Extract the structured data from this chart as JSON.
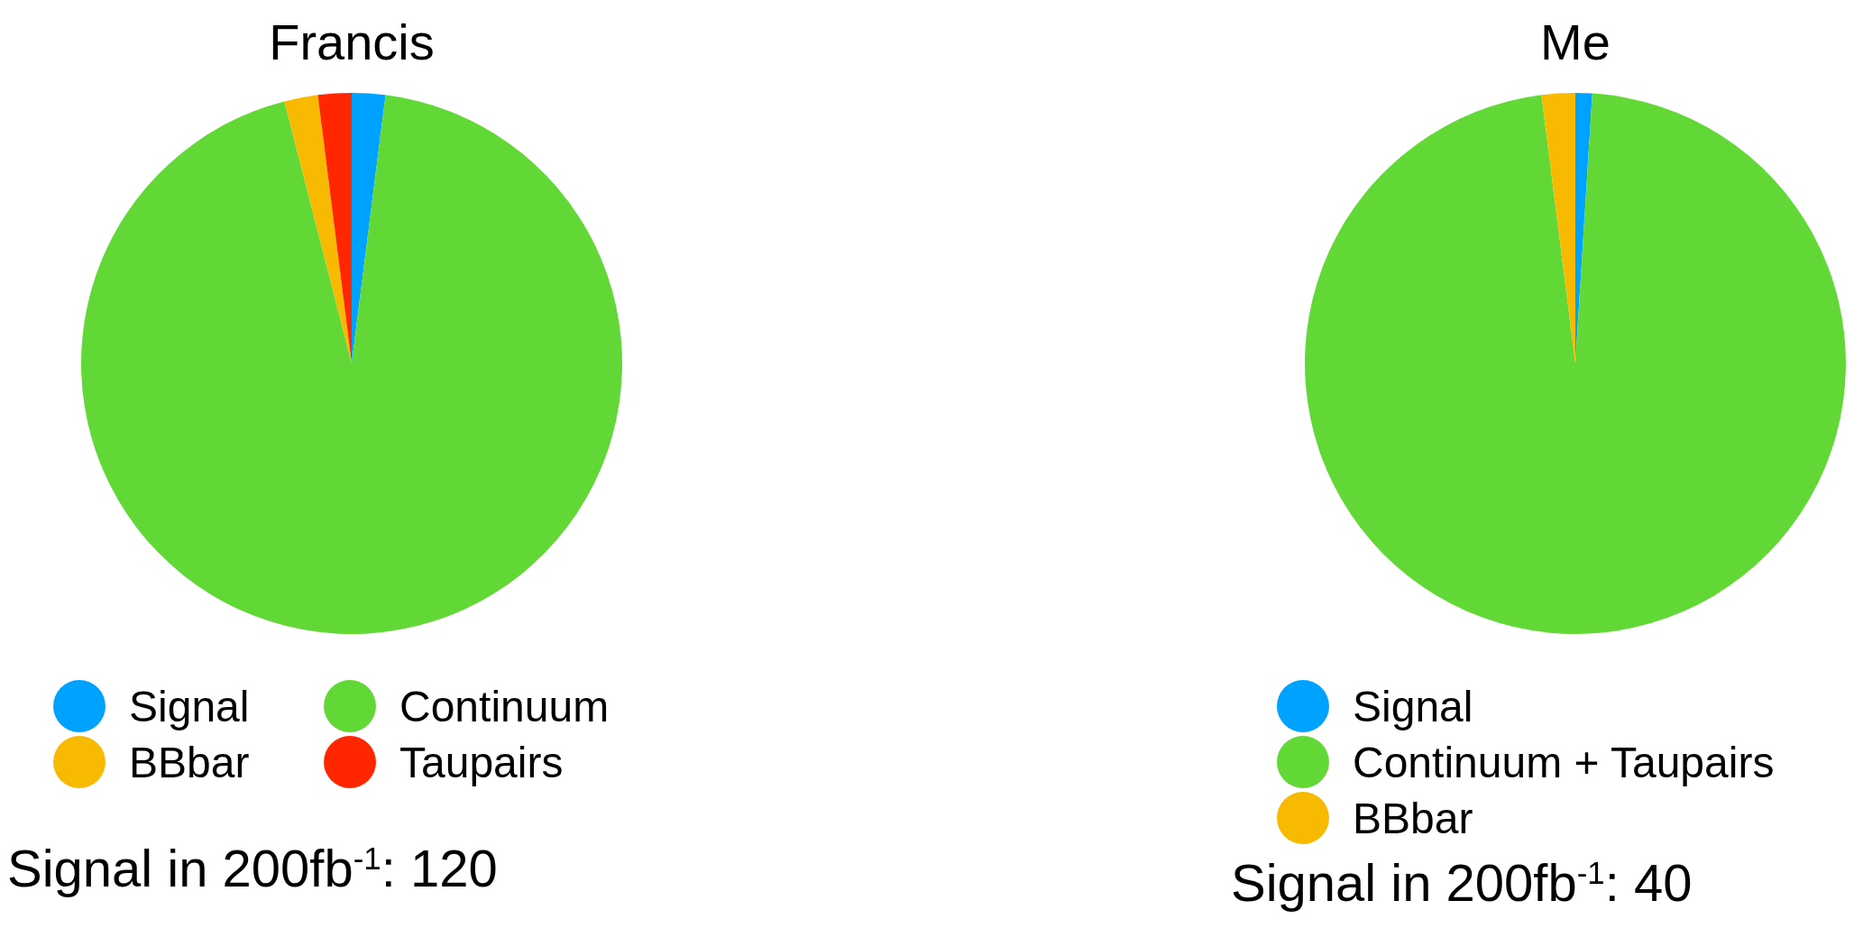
{
  "chart_data": [
    {
      "type": "pie",
      "title": "Francis",
      "categories": [
        "Signal",
        "Continuum",
        "BBbar",
        "Taupairs"
      ],
      "values": [
        2,
        94,
        2,
        2
      ],
      "colors": [
        "#00a2ff",
        "#61d836",
        "#f8ba00",
        "#ff2600"
      ],
      "legend": "bottom",
      "annotations": [
        "Signal in 200fb$^{-1}$: 120"
      ]
    },
    {
      "type": "pie",
      "title": "Me",
      "categories": [
        "Signal",
        "Continuum + Taupairs",
        "BBbar"
      ],
      "values": [
        1,
        97,
        2
      ],
      "colors": [
        "#00a2ff",
        "#61d836",
        "#f8ba00"
      ],
      "legend": "bottom",
      "annotations": [
        "Signal in 200fb$^{-1}$: 40"
      ]
    }
  ]
}
